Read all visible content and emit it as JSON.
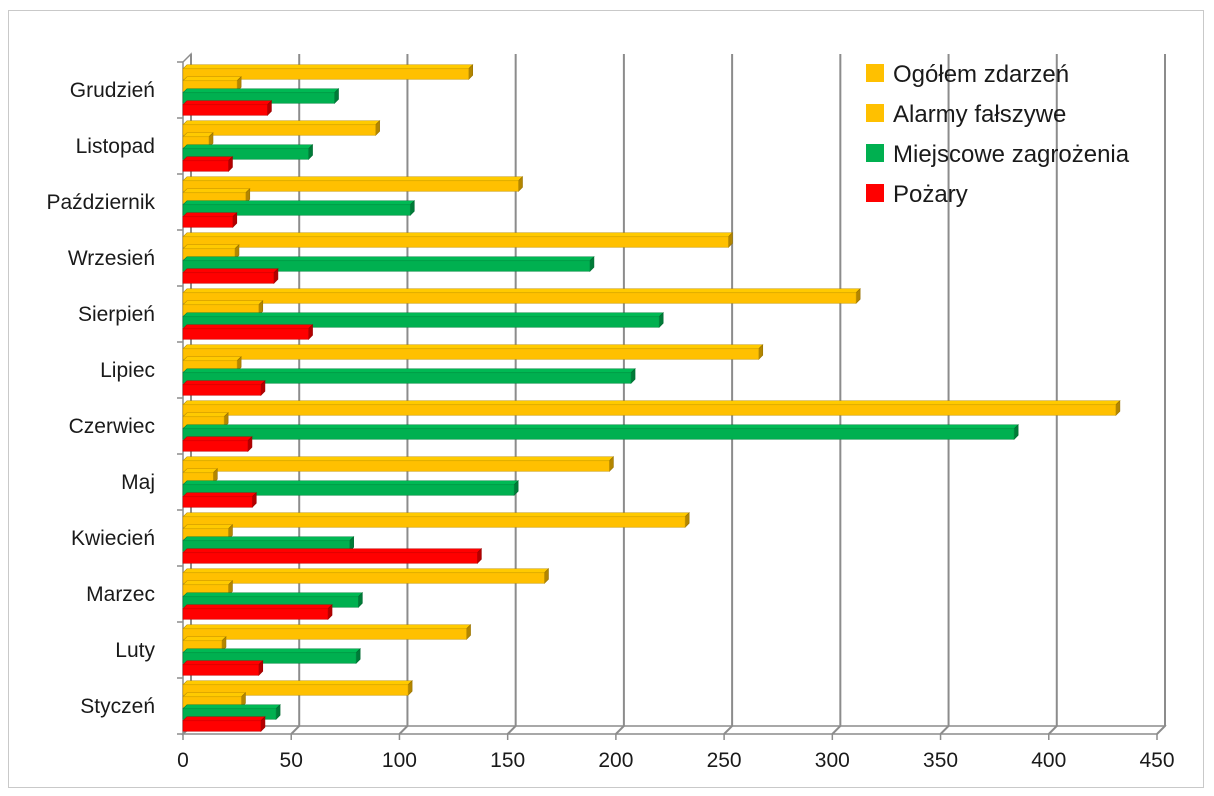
{
  "chart_data": {
    "type": "bar",
    "orientation": "horizontal",
    "categories": [
      "Styczeń",
      "Luty",
      "Marzec",
      "Kwiecień",
      "Maj",
      "Czerwiec",
      "Lipiec",
      "Sierpień",
      "Wrzesień",
      "Październik",
      "Listopad",
      "Grudzień"
    ],
    "series": [
      {
        "name": "Ogółem zdarzeń",
        "color": "#FFC000",
        "values": [
          104,
          131,
          167,
          232,
          197,
          431,
          266,
          311,
          252,
          155,
          89,
          132
        ]
      },
      {
        "name": "Alarmy fałszywe",
        "color": "#FFC000",
        "values": [
          27,
          18,
          21,
          21,
          14,
          19,
          25,
          35,
          24,
          29,
          12,
          25
        ]
      },
      {
        "name": "Miejscowe zagrożenia",
        "color": "#00B050",
        "values": [
          43,
          80,
          81,
          77,
          153,
          384,
          207,
          220,
          188,
          105,
          58,
          70
        ]
      },
      {
        "name": "Pożary",
        "color": "#FF0000",
        "values": [
          36,
          35,
          67,
          136,
          32,
          30,
          36,
          58,
          42,
          23,
          21,
          39
        ]
      }
    ],
    "xlim": [
      0,
      450
    ],
    "x_ticks": [
      0,
      50,
      100,
      150,
      200,
      250,
      300,
      350,
      400,
      450
    ],
    "grid": true,
    "legend_position": "top-right",
    "style": "3d-bars"
  }
}
